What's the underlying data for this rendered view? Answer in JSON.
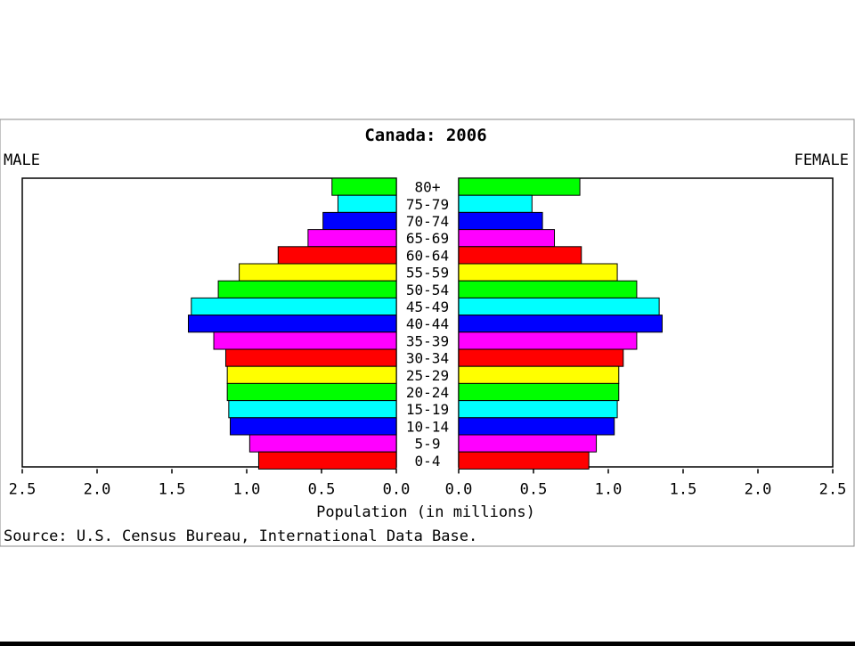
{
  "chart_data": {
    "type": "bar",
    "title": "Canada: 2006",
    "left_label": "MALE",
    "right_label": "FEMALE",
    "xlabel": "Population (in millions)",
    "source": "Source: U.S. Census Bureau, International Data Base.",
    "xlim": [
      0,
      2.5
    ],
    "x_ticks": [
      "2.5",
      "2.0",
      "1.5",
      "1.0",
      "0.5",
      "0.0"
    ],
    "x_ticks_right": [
      "0.0",
      "0.5",
      "1.0",
      "1.5",
      "2.0",
      "2.5"
    ],
    "categories": [
      "80+",
      "75-79",
      "70-74",
      "65-69",
      "60-64",
      "55-59",
      "50-54",
      "45-49",
      "40-44",
      "35-39",
      "30-34",
      "25-29",
      "20-24",
      "15-19",
      "10-14",
      "5-9",
      "0-4"
    ],
    "bar_colors": [
      "#00ff00",
      "#00ffff",
      "#0000ff",
      "#ff00ff",
      "#ff0000",
      "#ffff00",
      "#00ff00",
      "#00ffff",
      "#0000ff",
      "#ff00ff",
      "#ff0000",
      "#ffff00",
      "#00ff00",
      "#00ffff",
      "#0000ff",
      "#ff00ff",
      "#ff0000"
    ],
    "series": [
      {
        "name": "MALE",
        "values": [
          0.43,
          0.39,
          0.49,
          0.59,
          0.79,
          1.05,
          1.19,
          1.37,
          1.39,
          1.22,
          1.14,
          1.13,
          1.13,
          1.12,
          1.11,
          0.98,
          0.92
        ]
      },
      {
        "name": "FEMALE",
        "values": [
          0.81,
          0.49,
          0.56,
          0.64,
          0.82,
          1.06,
          1.19,
          1.34,
          1.36,
          1.19,
          1.1,
          1.07,
          1.07,
          1.06,
          1.04,
          0.92,
          0.87
        ]
      }
    ]
  }
}
